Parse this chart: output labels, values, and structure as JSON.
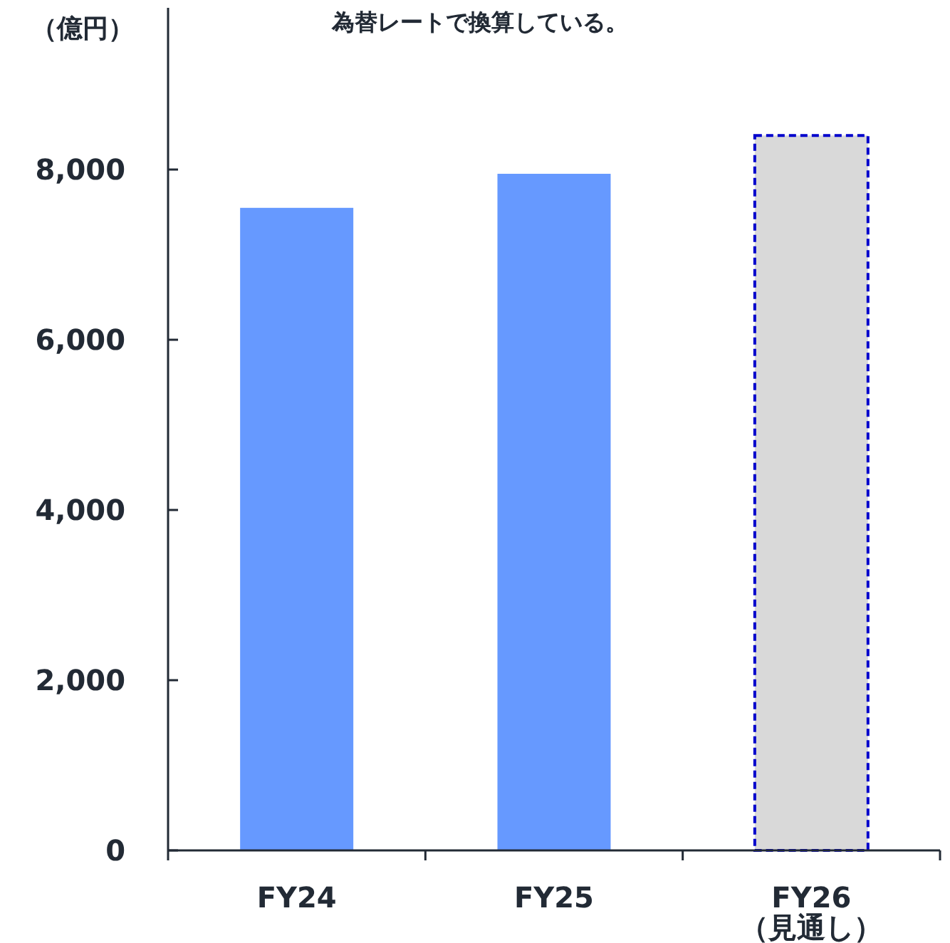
{
  "chart_data": {
    "type": "bar",
    "ylabel": "（億円）",
    "annotations": [
      "為替レートで換算している。"
    ],
    "categories": [
      "FY24",
      "FY25",
      "FY26\n（見通し）"
    ],
    "series": [
      {
        "color": "#6699ff",
        "values": [
          7550,
          7950,
          null
        ]
      },
      {
        "color": "#d9d9d9",
        "line_style": "dashed",
        "values": [
          null,
          null,
          8400
        ]
      }
    ],
    "ylim": [
      0,
      9900
    ],
    "yticks": [
      0,
      {
        "value": 2000,
        "label": "2,000"
      },
      {
        "value": 4000,
        "label": "4,000"
      },
      {
        "value": 6000,
        "label": "6,000"
      },
      {
        "value": 8000,
        "label": "8,000"
      }
    ],
    "grid": false
  }
}
